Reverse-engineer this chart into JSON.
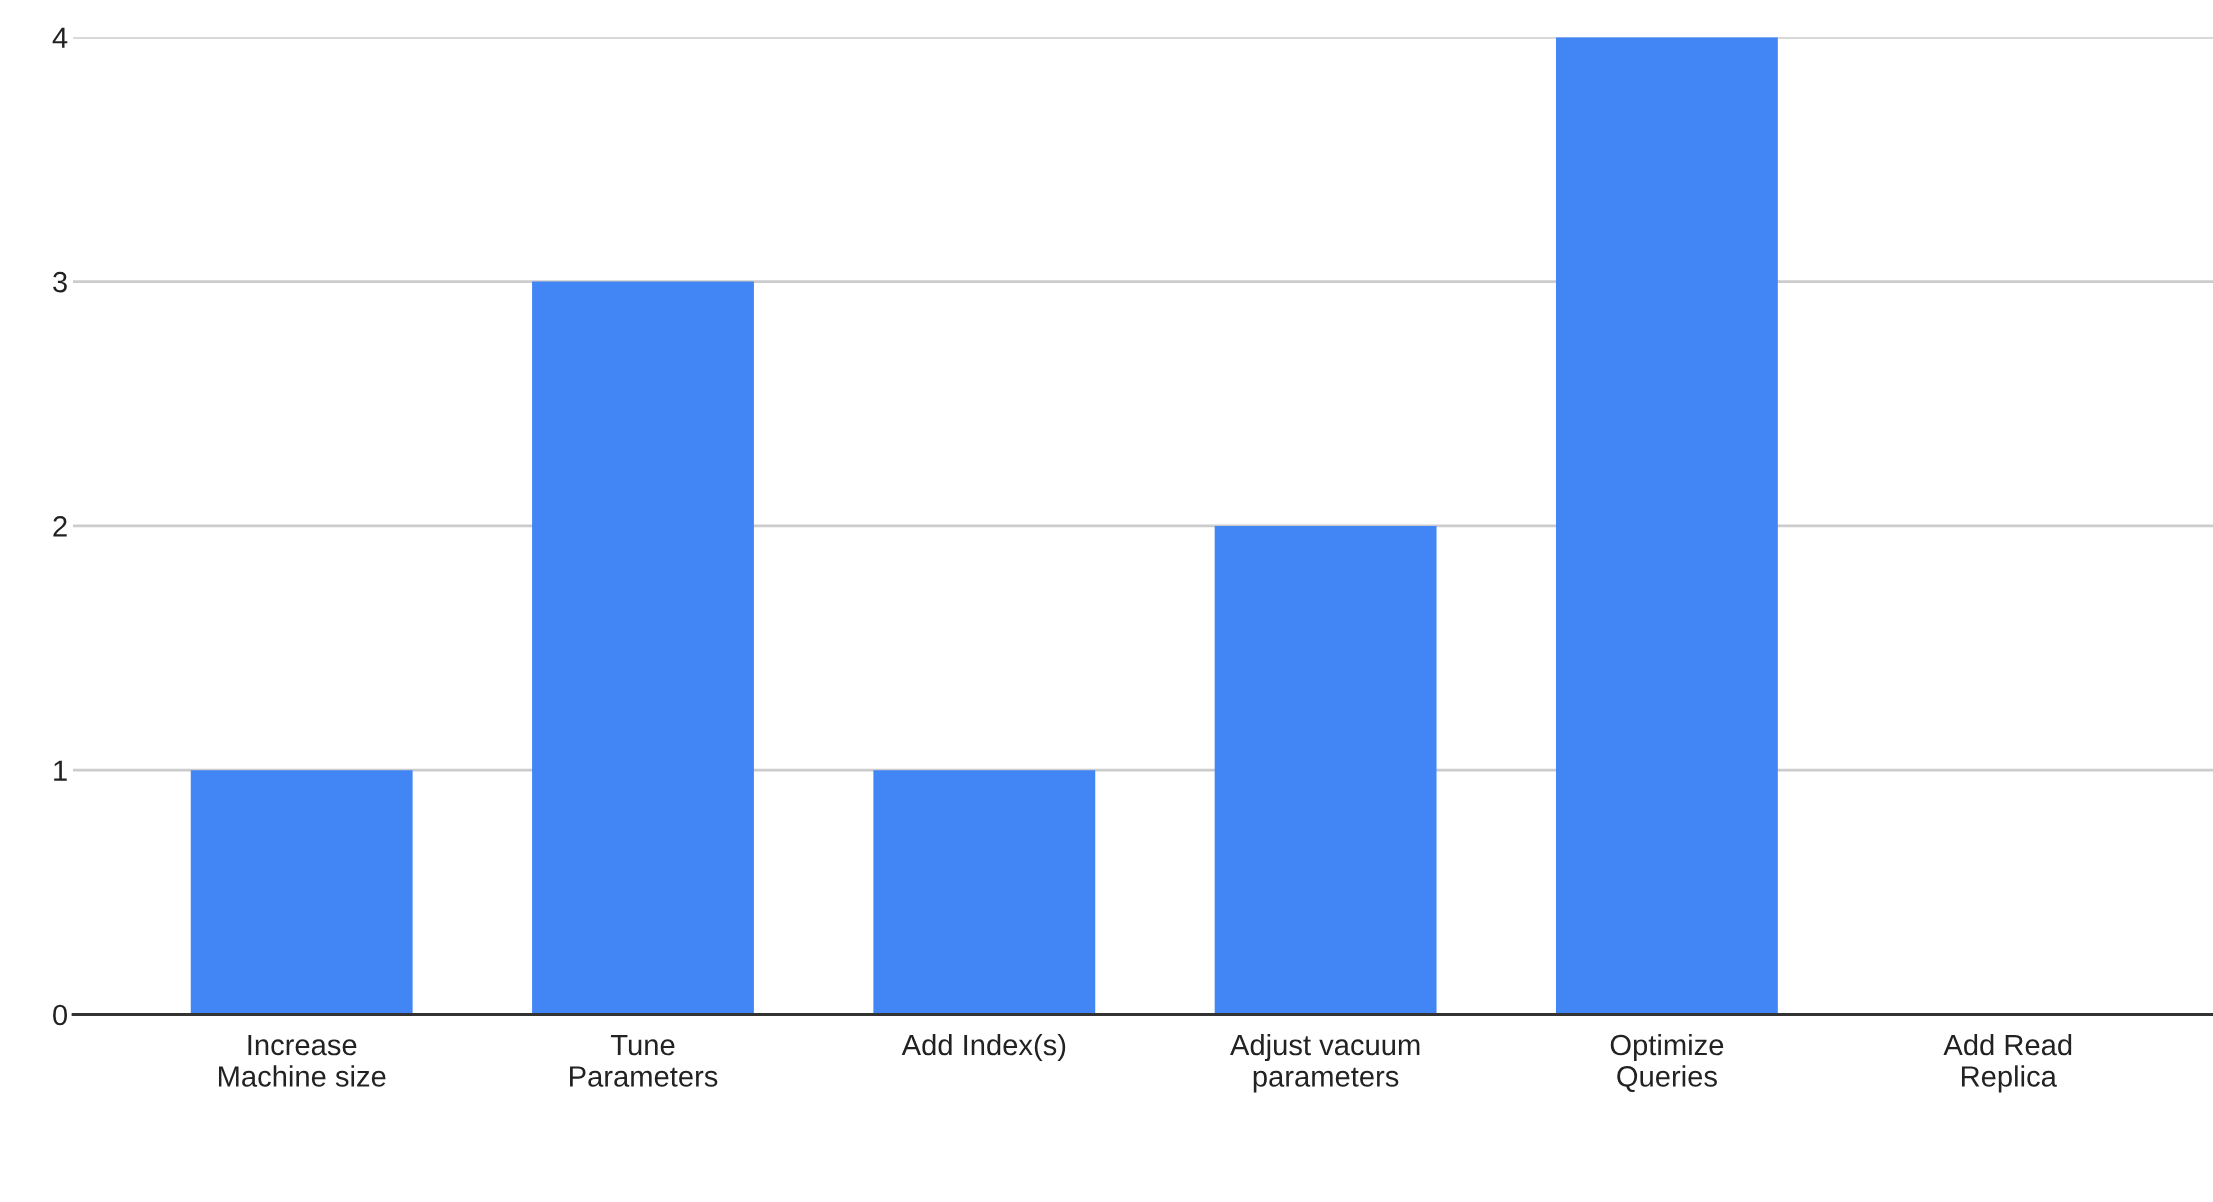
{
  "chart_data": {
    "type": "bar",
    "categories": [
      "Increase\nMachine size",
      "Tune\nParameters",
      "Add Index(s)",
      "Adjust vacuum\nparameters",
      "Optimize\nQueries",
      "Add Read\nReplica"
    ],
    "values": [
      1,
      3,
      1,
      2,
      4,
      0
    ],
    "color": "#4285f4",
    "ylim": [
      0,
      4
    ],
    "yticks": [
      0,
      1,
      2,
      3,
      4
    ],
    "grid": "y",
    "legend": false
  }
}
